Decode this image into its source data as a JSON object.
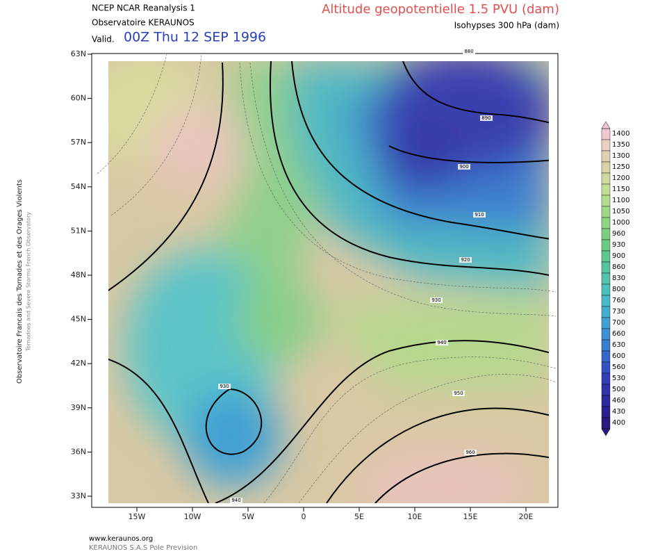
{
  "header": {
    "source": "NCEP NCAR Reanalysis 1",
    "observatory": "Observatoire KERAUNOS",
    "valid_label": "Valid.",
    "valid_time": "00Z Thu 12 SEP 1996",
    "title": "Altitude geopotentielle 1.5 PVU (dam)",
    "subtitle": "Isohypses 300 hPa (dam)"
  },
  "side_text": {
    "french": "Observatoire Francais des Tornades et des Orages Violents",
    "english": "Tornadoes and Severe Storms French Observatory"
  },
  "latitude_labels": [
    "63N",
    "60N",
    "57N",
    "54N",
    "51N",
    "48N",
    "45N",
    "42N",
    "39N",
    "36N",
    "33N"
  ],
  "longitude_labels": [
    "15W",
    "10W",
    "5W",
    "0",
    "5E",
    "10E",
    "15E",
    "20E"
  ],
  "colorbar_levels": [
    1400,
    1350,
    1300,
    1250,
    1200,
    1150,
    1100,
    1050,
    1000,
    960,
    930,
    900,
    860,
    830,
    800,
    760,
    730,
    700,
    660,
    630,
    600,
    560,
    530,
    500,
    460,
    430,
    400
  ],
  "contour_labels": [
    880,
    890,
    900,
    910,
    920,
    930,
    940,
    950,
    960,
    930,
    940
  ],
  "footer": {
    "website": "www.keraunos.org",
    "company": "KERAUNOS S.A.S Pole Prevision"
  }
}
